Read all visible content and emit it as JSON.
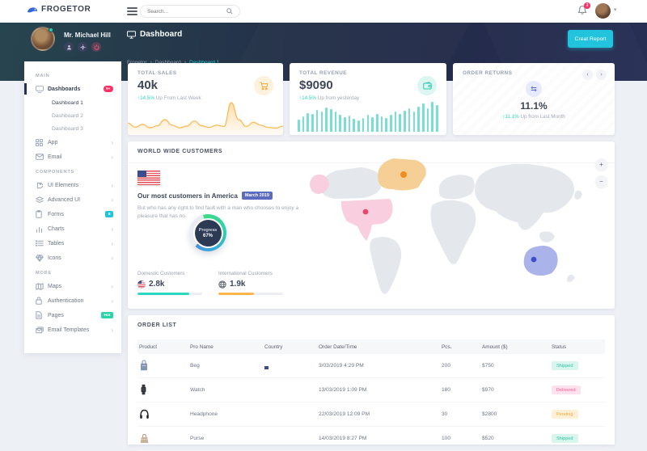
{
  "topbar": {
    "brand": "FROGETOR",
    "search_placeholder": "Search...",
    "notification_count": "3"
  },
  "subheader": {
    "user_name": "Mr. Michael Hill",
    "page_title": "Dashboard",
    "breadcrumb": [
      "Frogetor",
      "Dashboard",
      "Dashboard 1"
    ],
    "create_report": "Creat Report"
  },
  "icons": {
    "chevron_right": "›",
    "caret_down": "▾",
    "swap_arrows": "⇆",
    "up_arrow": "↑",
    "plus": "+",
    "minus": "−",
    "nav_prev": "‹",
    "nav_next": "›"
  },
  "sidebar": {
    "sections": [
      {
        "label": "MAIN",
        "items": [
          {
            "label": "Dashboards",
            "badge": "9+"
          },
          {
            "label": "App"
          },
          {
            "label": "Email"
          }
        ],
        "dashboards_children": [
          "Dashboard 1",
          "Dashboard 2",
          "Dashboard 3"
        ]
      },
      {
        "label": "COMPONENTS",
        "items": [
          {
            "label": "UI Elements"
          },
          {
            "label": "Advanced UI"
          },
          {
            "label": "Forms",
            "badge": "8"
          },
          {
            "label": "Charts"
          },
          {
            "label": "Tables"
          },
          {
            "label": "Icons"
          }
        ]
      },
      {
        "label": "MORE",
        "items": [
          {
            "label": "Maps"
          },
          {
            "label": "Authentication"
          },
          {
            "label": "Pages",
            "badge": "Hot"
          },
          {
            "label": "Email Templates"
          }
        ]
      }
    ]
  },
  "stats": {
    "sales": {
      "label": "TOTAL SALES",
      "value": "40k",
      "delta": "14.5%",
      "note": "Up From Last Week"
    },
    "revenue": {
      "label": "TOTAL REVENUE",
      "value": "$9090",
      "delta": "14.5%",
      "note": "Up from yesterday"
    },
    "returns": {
      "label": "ORDER RETURNS",
      "value": "11.1%",
      "delta": "11.1%",
      "note": "Up from Last Month"
    }
  },
  "customers": {
    "panel_title": "WORLD WIDE CUSTOMERS",
    "headline": "Our most customers in America",
    "date_badge": "March 2019",
    "body": "But who has any right to find fault with a man who chooses to enjoy a pleasure that has no.",
    "progress_label": "Progress",
    "progress_value": "67%",
    "domestic": {
      "label": "Domestic Customers",
      "value": "2.8k",
      "bar_pct": 80,
      "bar_color": "#2bd9c2"
    },
    "international": {
      "label": "International Customers",
      "value": "1.9k",
      "bar_pct": 55,
      "bar_color": "#ffb64d"
    }
  },
  "orders": {
    "panel_title": "ORDER LIST",
    "columns": [
      "Product",
      "Pro Name",
      "Country",
      "Order Date/Time",
      "Pcs.",
      "Amount ($)",
      "Status"
    ],
    "rows": [
      {
        "name": "Beg",
        "datetime": "3/03/2019 4:29 PM",
        "pcs": "200",
        "amount": "$750",
        "status": "Shipped",
        "status_color": "#2bc5a4"
      },
      {
        "name": "Watch",
        "datetime": "13/03/2019 1:09 PM",
        "pcs": "180",
        "amount": "$970",
        "status": "Delivered",
        "status_color": "#f75b8f"
      },
      {
        "name": "Headphone",
        "datetime": "22/03/2019 12:09 PM",
        "pcs": "30",
        "amount": "$2800",
        "status": "Pending",
        "status_color": "#efa93e"
      },
      {
        "name": "Purse",
        "datetime": "14/03/2019 8:27 PM",
        "pcs": "100",
        "amount": "$520",
        "status": "Shipped",
        "status_color": "#2bc5a4"
      }
    ]
  },
  "chart_data": [
    {
      "type": "area",
      "name": "total-sales-trend",
      "color": "#ffb64d",
      "values": [
        28,
        16,
        24,
        14,
        20,
        38,
        22,
        14,
        19,
        34,
        20,
        15,
        22,
        18,
        88,
        38,
        18,
        30,
        22,
        15,
        13,
        19
      ]
    },
    {
      "type": "bar",
      "name": "total-revenue-bars",
      "color": "#7adfd3",
      "values": [
        38,
        48,
        58,
        55,
        68,
        62,
        75,
        70,
        62,
        52,
        45,
        50,
        40,
        34,
        42,
        52,
        46,
        56,
        48,
        42,
        52,
        62,
        56,
        66,
        72,
        62,
        78,
        88,
        72,
        92,
        82
      ]
    },
    {
      "type": "donut",
      "name": "progress",
      "value": 67,
      "label": "Progress"
    }
  ],
  "brand_color": "#2f68d8",
  "accent_color": "#21c3dd",
  "pink_color": "#ff2e63"
}
